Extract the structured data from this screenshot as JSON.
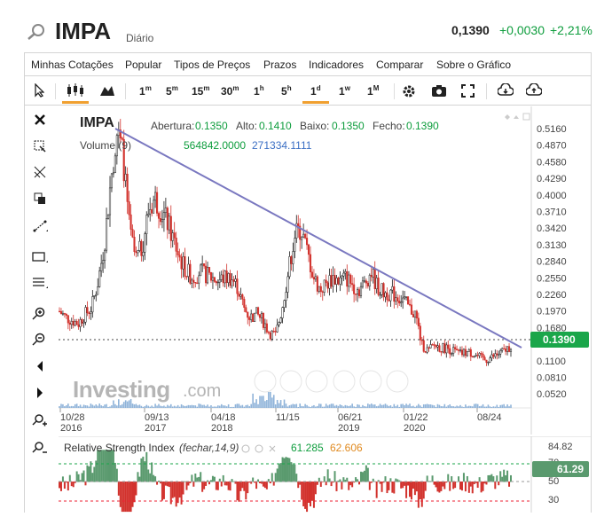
{
  "header": {
    "symbol": "IMPA",
    "period": "Diário",
    "price": "0,1390",
    "change": "+0,0030",
    "change_pct": "+2,21%"
  },
  "menu": [
    "Minhas Cotações",
    "Popular",
    "Tipos de Preços",
    "Prazos",
    "Indicadores",
    "Comparar",
    "Sobre o Gráfico"
  ],
  "timeframes": [
    {
      "n": "1",
      "s": "m"
    },
    {
      "n": "5",
      "s": "m"
    },
    {
      "n": "15",
      "s": "m"
    },
    {
      "n": "30",
      "s": "m"
    },
    {
      "n": "1",
      "s": "h"
    },
    {
      "n": "5",
      "s": "h"
    },
    {
      "n": "1",
      "s": "d"
    },
    {
      "n": "1",
      "s": "w"
    },
    {
      "n": "1",
      "s": "M"
    }
  ],
  "legend": {
    "symbol": "IMPA",
    "open_label": "Abertura:",
    "open": "0.1350",
    "high_label": "Alto:",
    "high": "0.1410",
    "low_label": "Baixo:",
    "low": "0.1350",
    "close_label": "Fecho:",
    "close": "0.1390",
    "volume_label": "Volume (9)",
    "volume": "564842.0000",
    "volume_ma": "271334.1111"
  },
  "price_badge": "0.1390",
  "watermark": {
    "brand": "Investing",
    "suffix": ".com"
  },
  "rsi": {
    "label": "Relative Strength Index",
    "params": "(fechar,14,9)",
    "value": "61.285",
    "signal": "62.606",
    "badge": "61.29",
    "levels": [
      "84.82",
      "70",
      "50",
      "30"
    ]
  },
  "chart_data": {
    "type": "line",
    "title": "IMPA",
    "y_ticks": [
      "0.5160",
      "0.4870",
      "0.4580",
      "0.4290",
      "0.4000",
      "0.3710",
      "0.3420",
      "0.3130",
      "0.2840",
      "0.2550",
      "0.2260",
      "0.1970",
      "0.1680",
      "0.1390",
      "0.1100",
      "0.0810",
      "0.0520"
    ],
    "x_ticks": [
      {
        "label": "10/28",
        "year": "2016"
      },
      {
        "label": "09/13",
        "year": "2017"
      },
      {
        "label": "04/18",
        "year": "2018"
      },
      {
        "label": "11/15",
        "year": ""
      },
      {
        "label": "06/21",
        "year": "2019"
      },
      {
        "label": "01/22",
        "year": "2020"
      },
      {
        "label": "08/24",
        "year": ""
      }
    ],
    "ylim": [
      0.037,
      0.53
    ],
    "approx_close": [
      0.195,
      0.185,
      0.18,
      0.175,
      0.19,
      0.2,
      0.24,
      0.3,
      0.4,
      0.49,
      0.45,
      0.33,
      0.28,
      0.3,
      0.36,
      0.38,
      0.36,
      0.34,
      0.31,
      0.28,
      0.26,
      0.25,
      0.26,
      0.255,
      0.25,
      0.245,
      0.25,
      0.25,
      0.235,
      0.2,
      0.185,
      0.19,
      0.18,
      0.16,
      0.155,
      0.2,
      0.26,
      0.32,
      0.33,
      0.29,
      0.25,
      0.23,
      0.24,
      0.25,
      0.245,
      0.25,
      0.24,
      0.23,
      0.24,
      0.26,
      0.235,
      0.225,
      0.225,
      0.22,
      0.215,
      0.2,
      0.19,
      0.14,
      0.13,
      0.14,
      0.135,
      0.135,
      0.13,
      0.125,
      0.128,
      0.126,
      0.12,
      0.115,
      0.12,
      0.125,
      0.13,
      0.139
    ]
  }
}
